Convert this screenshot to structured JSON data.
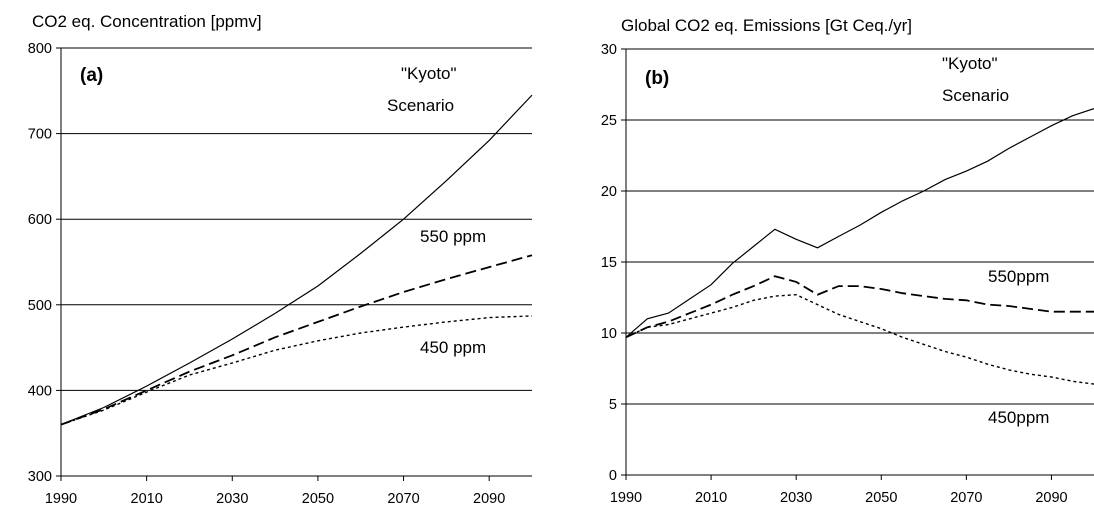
{
  "chart_data": [
    {
      "type": "line",
      "title": "CO2 eq. Concentration [ppmv]",
      "panel_label": "(a)",
      "x_ticks": [
        "1990",
        "2010",
        "2030",
        "2050",
        "2070",
        "2090"
      ],
      "y_ticks": [
        "300",
        "400",
        "500",
        "600",
        "700",
        "800"
      ],
      "xlim": [
        1990,
        2100
      ],
      "ylim": [
        300,
        800
      ],
      "grid": "horizontal",
      "annotations": [
        "\"Kyoto\"",
        "Scenario",
        "550 ppm",
        "450 ppm"
      ],
      "series": [
        {
          "style": "solid",
          "x": [
            1990,
            2000,
            2010,
            2020,
            2030,
            2040,
            2050,
            2060,
            2070,
            2080,
            2090,
            2100
          ],
          "values": [
            360,
            380,
            405,
            432,
            460,
            490,
            522,
            560,
            600,
            645,
            692,
            745
          ]
        },
        {
          "style": "dashed",
          "x": [
            1990,
            2000,
            2010,
            2020,
            2030,
            2040,
            2050,
            2060,
            2070,
            2080,
            2090,
            2100
          ],
          "values": [
            360,
            378,
            400,
            422,
            441,
            462,
            480,
            498,
            515,
            530,
            544,
            558
          ]
        },
        {
          "style": "dotted",
          "x": [
            1990,
            2000,
            2010,
            2020,
            2030,
            2040,
            2050,
            2060,
            2070,
            2080,
            2090,
            2100
          ],
          "values": [
            360,
            377,
            398,
            418,
            432,
            447,
            458,
            467,
            474,
            480,
            485,
            487
          ]
        }
      ]
    },
    {
      "type": "line",
      "title": "Global CO2 eq. Emissions [Gt Ceq./yr]",
      "panel_label": "(b)",
      "x_ticks": [
        "1990",
        "2010",
        "2030",
        "2050",
        "2070",
        "2090"
      ],
      "y_ticks": [
        "0",
        "5",
        "10",
        "15",
        "20",
        "25",
        "30"
      ],
      "xlim": [
        1990,
        2100
      ],
      "ylim": [
        0,
        30
      ],
      "grid": "horizontal",
      "annotations": [
        "\"Kyoto\"",
        "Scenario",
        "550ppm",
        "450ppm"
      ],
      "series": [
        {
          "style": "solid",
          "x": [
            1990,
            1995,
            2000,
            2005,
            2010,
            2015,
            2020,
            2025,
            2030,
            2035,
            2040,
            2045,
            2050,
            2055,
            2060,
            2065,
            2070,
            2075,
            2080,
            2085,
            2090,
            2095,
            2100
          ],
          "values": [
            9.7,
            11.0,
            11.4,
            12.4,
            13.4,
            14.9,
            16.1,
            17.3,
            16.6,
            16.0,
            16.8,
            17.6,
            18.5,
            19.3,
            20.0,
            20.8,
            21.4,
            22.1,
            23.0,
            23.8,
            24.6,
            25.3,
            25.8
          ]
        },
        {
          "style": "dashed",
          "x": [
            1990,
            1995,
            2000,
            2005,
            2010,
            2015,
            2020,
            2025,
            2030,
            2035,
            2040,
            2045,
            2050,
            2055,
            2060,
            2065,
            2070,
            2075,
            2080,
            2085,
            2090,
            2095,
            2100
          ],
          "values": [
            9.7,
            10.4,
            10.8,
            11.4,
            12.0,
            12.7,
            13.3,
            14.0,
            13.6,
            12.7,
            13.3,
            13.3,
            13.1,
            12.8,
            12.6,
            12.4,
            12.3,
            12.0,
            11.9,
            11.7,
            11.5,
            11.5,
            11.5
          ]
        },
        {
          "style": "dotted",
          "x": [
            1990,
            1995,
            2000,
            2005,
            2010,
            2015,
            2020,
            2025,
            2030,
            2035,
            2040,
            2045,
            2050,
            2055,
            2060,
            2065,
            2070,
            2075,
            2080,
            2085,
            2090,
            2095,
            2100
          ],
          "values": [
            9.7,
            10.4,
            10.6,
            11.0,
            11.4,
            11.8,
            12.3,
            12.6,
            12.7,
            12.0,
            11.3,
            10.8,
            10.3,
            9.7,
            9.2,
            8.7,
            8.3,
            7.8,
            7.4,
            7.1,
            6.9,
            6.6,
            6.4
          ]
        }
      ]
    }
  ]
}
